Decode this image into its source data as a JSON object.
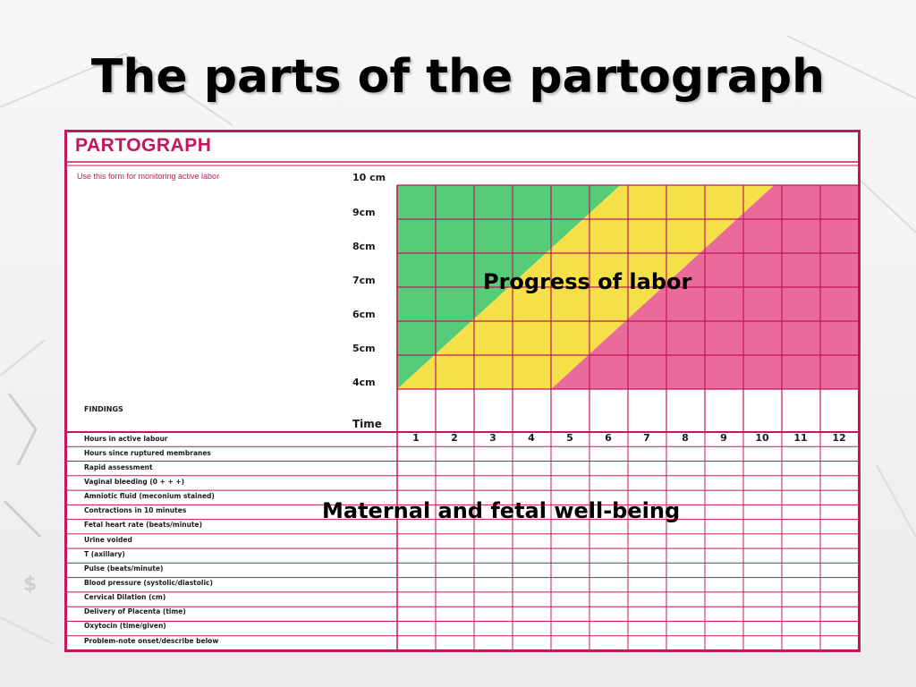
{
  "slide": {
    "title": "The parts of the partograph"
  },
  "form": {
    "title": "PARTOGRAPH",
    "subtitle": "Use this form for monitoring active labor",
    "dilation_labels": [
      "10 cm",
      "9cm",
      "8cm",
      "7cm",
      "6cm",
      "5cm",
      "4cm"
    ],
    "findings_label": "FINDINGS",
    "time_label": "Time",
    "hours": [
      "1",
      "2",
      "3",
      "4",
      "5",
      "6",
      "7",
      "8",
      "9",
      "10",
      "11",
      "12"
    ],
    "rows": [
      "Hours in active labour",
      "Hours since ruptured membranes",
      "Rapid assessment",
      "Vaginal bleeding (0 + + +)",
      "Amniotic fluid (meconium stained)",
      "Contractions in 10 minutes",
      "Fetal heart rate (beats/minute)",
      "Urine voided",
      "T (axillary)",
      "Pulse (beats/minute)",
      "Blood pressure (systolic/diastolic)",
      "Cervical Dilation (cm)",
      "Delivery of Placenta (time)",
      "Oxytocin (time/given)",
      "Problem-note onset/describe below"
    ],
    "colors": {
      "border": "#c2185b",
      "green_zone": "#55cc77",
      "yellow_zone": "#f6e04a",
      "pink_zone": "#ea6a9a"
    }
  },
  "overlays": {
    "progress": "Progress of labor",
    "maternal": "Maternal and fetal well-being"
  }
}
